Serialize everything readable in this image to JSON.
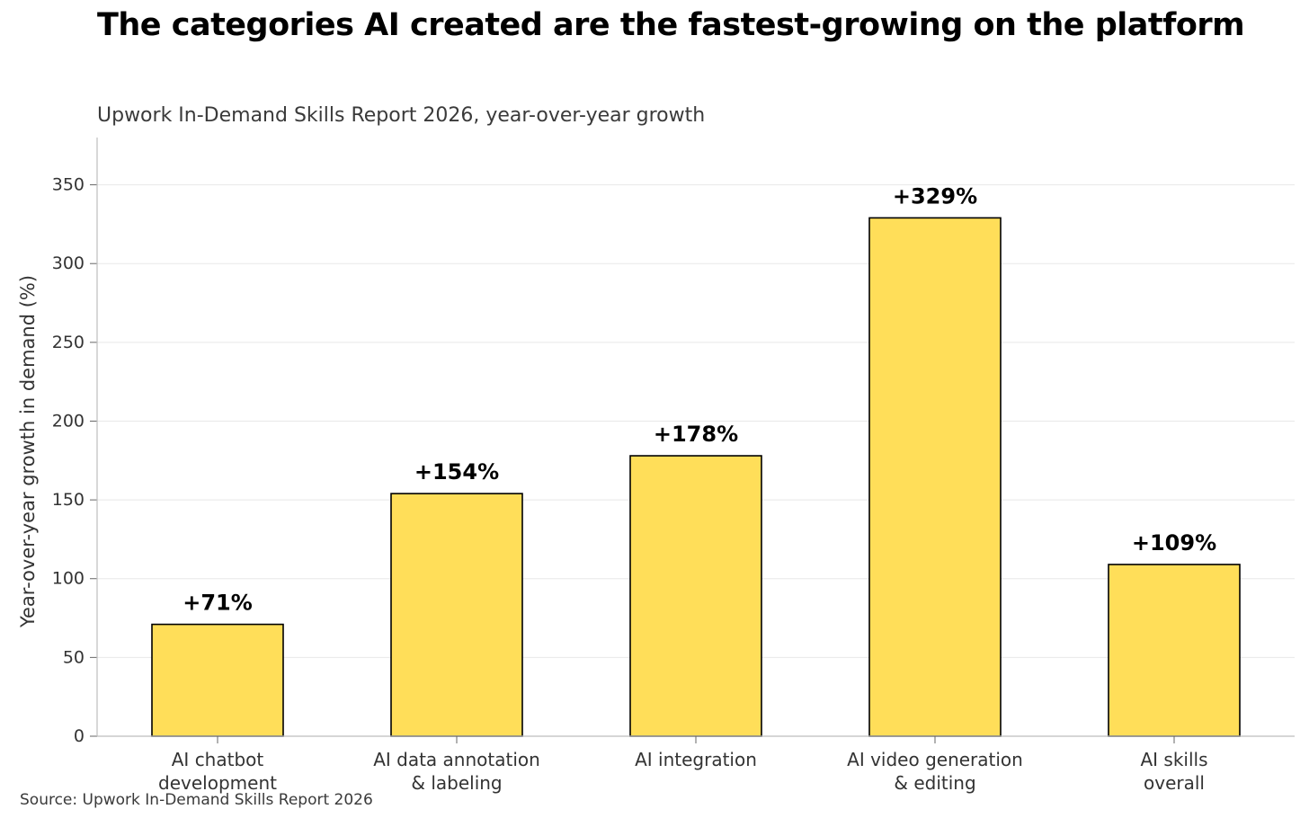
{
  "chart_data": {
    "type": "bar",
    "title": "The categories AI created are the fastest-growing on the platform",
    "subtitle": "Upwork In-Demand Skills Report 2026, year-over-year growth",
    "source": "Source: Upwork In-Demand Skills Report 2026",
    "ylabel": "Year-over-year growth in demand (%)",
    "xlabel": "",
    "ylim": [
      0,
      380
    ],
    "yticks": [
      0,
      50,
      100,
      150,
      200,
      250,
      300,
      350
    ],
    "grid": true,
    "categories": [
      [
        "AI chatbot",
        "development"
      ],
      [
        "AI data annotation",
        "& labeling"
      ],
      [
        "AI integration"
      ],
      [
        "AI video generation",
        "& editing"
      ],
      [
        "AI skills",
        "overall"
      ]
    ],
    "values": [
      71,
      154,
      178,
      329,
      109
    ],
    "value_labels": [
      "+71%",
      "+154%",
      "+178%",
      "+329%",
      "+109%"
    ],
    "bar_color": "#FFDE59",
    "bar_edge_color": "#000000"
  }
}
